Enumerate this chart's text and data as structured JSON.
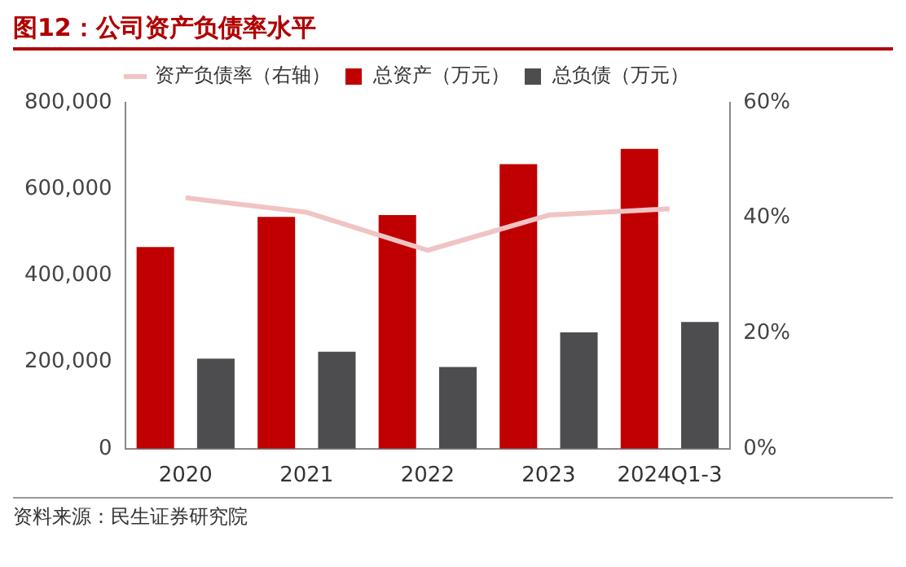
{
  "chart_data": {
    "type": "bar",
    "title": "图12：公司资产负债率水平",
    "categories": [
      "2020",
      "2021",
      "2022",
      "2023",
      "2024Q1-3"
    ],
    "series": [
      {
        "name": "总资产（万元）",
        "color": "#c00000",
        "values": [
          466000,
          536000,
          540000,
          658000,
          693000
        ]
      },
      {
        "name": "总负债（万元）",
        "color": "#4d4d4f",
        "values": [
          208000,
          224000,
          189000,
          269000,
          293000
        ]
      },
      {
        "name": "资产负债率（右轴）",
        "type": "line",
        "axis": "y2",
        "color": "#f0c4c4",
        "values": [
          43.5,
          41.0,
          34.4,
          40.5,
          41.6
        ]
      }
    ],
    "ylim": [
      0,
      800000
    ],
    "yticks": [
      {
        "value": 0,
        "label": "0"
      },
      {
        "value": 200000,
        "label": "200,000"
      },
      {
        "value": 400000,
        "label": "400,000"
      },
      {
        "value": 600000,
        "label": "600,000"
      },
      {
        "value": 800000,
        "label": "800,000"
      }
    ],
    "y2lim": [
      0,
      60
    ],
    "y2ticks": [
      {
        "value": 0,
        "label": "0%"
      },
      {
        "value": 20,
        "label": "20%"
      },
      {
        "value": 40,
        "label": "40%"
      },
      {
        "value": 60,
        "label": "60%"
      }
    ],
    "legend": "top",
    "grid": false,
    "marker": "none",
    "annotations": [
      "资料来源：民生证券研究院"
    ]
  }
}
